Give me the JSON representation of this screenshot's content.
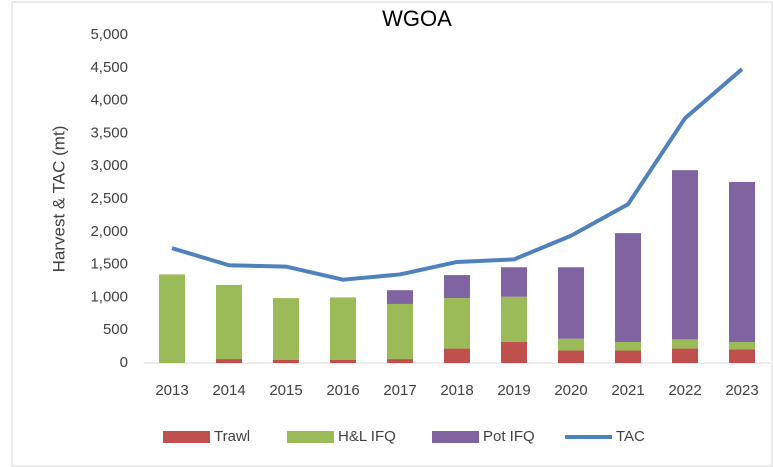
{
  "chart_data": {
    "type": "bar",
    "stacked": true,
    "title": "WGOA",
    "y_label": "Harvest & TAC (mt)",
    "categories": [
      "2013",
      "2014",
      "2015",
      "2016",
      "2017",
      "2018",
      "2019",
      "2020",
      "2021",
      "2022",
      "2023"
    ],
    "series": [
      {
        "name": "Trawl",
        "color": "#c0504d",
        "values": [
          0,
          60,
          50,
          50,
          60,
          220,
          320,
          190,
          190,
          220,
          210
        ]
      },
      {
        "name": "H&L IFQ",
        "color": "#9bbb59",
        "values": [
          1350,
          1130,
          940,
          950,
          840,
          770,
          690,
          180,
          130,
          140,
          110
        ]
      },
      {
        "name": "Pot IFQ",
        "color": "#8064a2",
        "values": [
          0,
          0,
          0,
          0,
          210,
          350,
          450,
          1090,
          1660,
          2580,
          2440
        ]
      },
      {
        "name": "TAC",
        "color": "#4f81bd",
        "type": "line",
        "values": [
          1750,
          1490,
          1470,
          1270,
          1350,
          1540,
          1580,
          1940,
          2420,
          3730,
          4480
        ]
      }
    ],
    "ylim": [
      0,
      5000
    ],
    "yticks": [
      0,
      500,
      {
        "value": 1000,
        "label": "1,000"
      },
      {
        "value": 1500,
        "label": "1,500"
      },
      {
        "value": 2000,
        "label": "2,000"
      },
      {
        "value": 2500,
        "label": "2,500"
      },
      {
        "value": 3000,
        "label": "3,000"
      },
      {
        "value": 3500,
        "label": "3,500"
      },
      {
        "value": 4000,
        "label": "4,000"
      },
      {
        "value": 4500,
        "label": "4,500"
      },
      {
        "value": 5000,
        "label": "5,000"
      }
    ],
    "legend": "bottom"
  }
}
